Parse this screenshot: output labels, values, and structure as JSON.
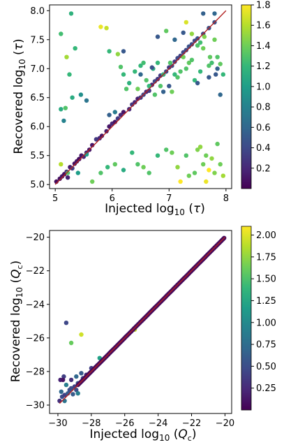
{
  "chart_data": [
    {
      "type": "scatter",
      "xlabel": "Injected log₁₀(τ)",
      "ylabel": "Recovered log₁₀(τ)",
      "xlim": [
        4.9,
        8.1
      ],
      "ylim": [
        4.93,
        8.1
      ],
      "xticks": [
        5,
        6,
        7,
        8
      ],
      "xtick_labels": [
        "5",
        "6",
        "7",
        "8"
      ],
      "yticks": [
        5.0,
        5.5,
        6.0,
        6.5,
        7.0,
        7.5,
        8.0
      ],
      "ytick_labels": [
        "5.0",
        "5.5",
        "6.0",
        "6.5",
        "7.0",
        "7.5",
        "8.0"
      ],
      "identity_line": {
        "from": [
          5.0,
          5.0
        ],
        "to": [
          8.0,
          8.0
        ],
        "color": "#b22222"
      },
      "colorbar": {
        "colormap": "viridis",
        "vmin": 0.0,
        "vmax": 1.8,
        "ticks": [
          0.2,
          0.4,
          0.6,
          0.8,
          1.0,
          1.2,
          1.4,
          1.6,
          1.8
        ],
        "tick_labels": [
          "0.2",
          "0.4",
          "0.6",
          "0.8",
          "1.0",
          "1.2",
          "1.4",
          "1.6",
          "1.8"
        ]
      },
      "points": [
        [
          5.02,
          5.05,
          0.05
        ],
        [
          5.08,
          5.1,
          0.08
        ],
        [
          5.12,
          5.14,
          0.1
        ],
        [
          5.16,
          5.18,
          0.06
        ],
        [
          5.2,
          5.22,
          0.2
        ],
        [
          5.22,
          5.12,
          0.15
        ],
        [
          5.26,
          5.3,
          0.12
        ],
        [
          5.3,
          5.28,
          0.3
        ],
        [
          5.34,
          5.36,
          0.08
        ],
        [
          5.38,
          5.4,
          0.1
        ],
        [
          5.42,
          5.44,
          0.05
        ],
        [
          5.46,
          5.5,
          0.1
        ],
        [
          5.5,
          5.48,
          0.2
        ],
        [
          5.55,
          5.55,
          0.15
        ],
        [
          5.6,
          5.6,
          0.1
        ],
        [
          5.65,
          5.68,
          0.12
        ],
        [
          5.72,
          5.78,
          0.3
        ],
        [
          5.78,
          5.8,
          0.2
        ],
        [
          5.82,
          5.84,
          0.1
        ],
        [
          5.9,
          5.92,
          0.15
        ],
        [
          5.95,
          6.0,
          0.1
        ],
        [
          6.0,
          6.05,
          0.2
        ],
        [
          6.05,
          6.08,
          0.1
        ],
        [
          6.1,
          6.14,
          0.3
        ],
        [
          6.15,
          6.2,
          0.2
        ],
        [
          6.2,
          6.25,
          0.1
        ],
        [
          6.3,
          6.3,
          0.2
        ],
        [
          6.35,
          6.38,
          0.3
        ],
        [
          6.4,
          6.42,
          0.2
        ],
        [
          6.45,
          6.48,
          0.15
        ],
        [
          6.5,
          6.5,
          0.3
        ],
        [
          6.55,
          6.55,
          0.4
        ],
        [
          6.6,
          6.6,
          0.2
        ],
        [
          6.65,
          6.62,
          0.3
        ],
        [
          6.7,
          6.72,
          0.2
        ],
        [
          6.75,
          6.78,
          0.4
        ],
        [
          6.8,
          6.82,
          0.3
        ],
        [
          6.85,
          6.88,
          0.3
        ],
        [
          6.9,
          6.9,
          0.35
        ],
        [
          6.95,
          6.95,
          0.4
        ],
        [
          7.0,
          7.02,
          0.3
        ],
        [
          7.05,
          7.05,
          0.4
        ],
        [
          7.1,
          7.12,
          0.3
        ],
        [
          7.15,
          7.18,
          0.4
        ],
        [
          7.2,
          7.22,
          0.35
        ],
        [
          7.25,
          7.28,
          0.4
        ],
        [
          7.3,
          7.32,
          0.4
        ],
        [
          7.35,
          7.38,
          0.45
        ],
        [
          7.4,
          7.42,
          0.4
        ],
        [
          7.45,
          7.48,
          0.4
        ],
        [
          7.5,
          7.52,
          0.45
        ],
        [
          7.6,
          7.6,
          0.4
        ],
        [
          7.7,
          7.7,
          0.45
        ],
        [
          7.8,
          7.8,
          0.45
        ],
        [
          5.28,
          7.95,
          1.15
        ],
        [
          5.1,
          7.6,
          1.25
        ],
        [
          5.2,
          7.2,
          1.55
        ],
        [
          5.25,
          6.9,
          1.2
        ],
        [
          5.3,
          6.5,
          1.1
        ],
        [
          5.35,
          7.35,
          1.2
        ],
        [
          5.1,
          6.3,
          1.1
        ],
        [
          5.18,
          6.32,
          1.3
        ],
        [
          5.8,
          7.72,
          1.75
        ],
        [
          5.9,
          7.7,
          1.65
        ],
        [
          5.95,
          7.3,
          1.2
        ],
        [
          6.1,
          7.25,
          1.5
        ],
        [
          6.15,
          7.03,
          1.3
        ],
        [
          6.2,
          6.9,
          1.2
        ],
        [
          6.25,
          6.65,
          1.3
        ],
        [
          6.3,
          6.75,
          1.15
        ],
        [
          6.4,
          6.95,
          1.2
        ],
        [
          6.45,
          6.65,
          1.4
        ],
        [
          6.5,
          7.05,
          1.2
        ],
        [
          6.55,
          7.1,
          1.25
        ],
        [
          6.6,
          6.8,
          1.3
        ],
        [
          6.65,
          6.7,
          1.2
        ],
        [
          6.72,
          7.0,
          1.1
        ],
        [
          6.75,
          6.55,
          1.3
        ],
        [
          6.8,
          7.1,
          1.2
        ],
        [
          6.85,
          6.7,
          1.3
        ],
        [
          6.9,
          6.9,
          1.2
        ],
        [
          6.95,
          7.65,
          1.35
        ],
        [
          7.02,
          7.1,
          1.3
        ],
        [
          7.1,
          6.9,
          1.2
        ],
        [
          7.2,
          6.95,
          1.3
        ],
        [
          7.25,
          7.2,
          1.4
        ],
        [
          7.3,
          7.0,
          1.3
        ],
        [
          7.35,
          7.1,
          1.35
        ],
        [
          7.4,
          7.15,
          1.3
        ],
        [
          7.45,
          6.8,
          1.2
        ],
        [
          7.5,
          7.4,
          1.3
        ],
        [
          7.55,
          7.45,
          1.25
        ],
        [
          7.6,
          7.35,
          1.4
        ],
        [
          7.7,
          7.05,
          1.3
        ],
        [
          7.72,
          7.2,
          1.35
        ],
        [
          7.75,
          7.1,
          1.25
        ],
        [
          7.8,
          7.5,
          1.4
        ],
        [
          7.85,
          7.2,
          1.3
        ],
        [
          7.9,
          7.08,
          1.35
        ],
        [
          7.95,
          6.9,
          1.2
        ],
        [
          7.55,
          6.95,
          1.2
        ],
        [
          7.62,
          7.55,
          1.45
        ],
        [
          7.4,
          7.6,
          1.5
        ],
        [
          7.3,
          7.8,
          1.7
        ],
        [
          7.15,
          6.85,
          1.3
        ],
        [
          7.05,
          6.6,
          1.4
        ],
        [
          5.95,
          6.2,
          0.55
        ],
        [
          6.2,
          7.3,
          0.5
        ],
        [
          6.5,
          6.9,
          0.6
        ],
        [
          6.7,
          7.02,
          0.45
        ],
        [
          6.8,
          7.55,
          0.5
        ],
        [
          6.9,
          6.6,
          0.55
        ],
        [
          7.0,
          6.7,
          0.5
        ],
        [
          7.1,
          7.5,
          0.6
        ],
        [
          7.25,
          7.62,
          0.5
        ],
        [
          7.6,
          7.95,
          0.55
        ],
        [
          7.8,
          7.95,
          0.6
        ],
        [
          7.9,
          6.55,
          0.6
        ],
        [
          7.82,
          6.9,
          0.5
        ],
        [
          7.7,
          6.85,
          0.5
        ],
        [
          7.5,
          6.75,
          0.5
        ],
        [
          7.85,
          7.0,
          0.55
        ],
        [
          5.15,
          6.1,
          0.8
        ],
        [
          5.45,
          6.55,
          0.9
        ],
        [
          5.55,
          6.45,
          0.7
        ],
        [
          6.05,
          6.25,
          0.75
        ],
        [
          5.1,
          5.35,
          1.6
        ],
        [
          5.22,
          5.2,
          1.3
        ],
        [
          5.4,
          5.2,
          1.0
        ],
        [
          5.55,
          5.52,
          1.0
        ],
        [
          5.65,
          5.05,
          1.4
        ],
        [
          5.8,
          5.2,
          1.3
        ],
        [
          5.92,
          5.3,
          1.2
        ],
        [
          6.05,
          5.35,
          1.35
        ],
        [
          6.2,
          5.25,
          1.1
        ],
        [
          6.35,
          5.55,
          1.2
        ],
        [
          6.45,
          5.35,
          1.3
        ],
        [
          6.55,
          5.3,
          1.4
        ],
        [
          6.65,
          5.2,
          1.3
        ],
        [
          6.8,
          5.5,
          1.2
        ],
        [
          6.95,
          5.6,
          1.3
        ],
        [
          7.05,
          5.55,
          1.4
        ],
        [
          7.15,
          5.3,
          1.5
        ],
        [
          7.2,
          5.05,
          1.8
        ],
        [
          7.3,
          5.5,
          1.3
        ],
        [
          7.35,
          5.15,
          1.4
        ],
        [
          7.45,
          5.2,
          1.35
        ],
        [
          7.5,
          5.6,
          1.45
        ],
        [
          7.55,
          5.65,
          1.5
        ],
        [
          7.6,
          5.35,
          1.4
        ],
        [
          7.65,
          5.05,
          1.75
        ],
        [
          7.7,
          5.25,
          1.8
        ],
        [
          7.75,
          5.45,
          1.5
        ],
        [
          7.8,
          5.2,
          1.45
        ],
        [
          7.85,
          5.7,
          1.35
        ],
        [
          7.9,
          5.35,
          1.4
        ],
        [
          7.95,
          5.15,
          1.55
        ],
        [
          7.65,
          5.5,
          1.4
        ]
      ]
    },
    {
      "type": "scatter",
      "xlabel": "Injected log₁₀(Qc)",
      "ylabel": "Recovered log₁₀(Qc)",
      "xlim": [
        -30.5,
        -19.6
      ],
      "ylim": [
        -30.5,
        -19.6
      ],
      "xticks": [
        -30,
        -28,
        -26,
        -24,
        -22,
        -20
      ],
      "xtick_labels": [
        "−30",
        "−28",
        "−26",
        "−24",
        "−22",
        "−20"
      ],
      "yticks": [
        -30,
        -28,
        -26,
        -24,
        -22,
        -20
      ],
      "ytick_labels": [
        "−30",
        "−28",
        "−26",
        "−24",
        "−22",
        "−20"
      ],
      "identity_line": {
        "from": [
          -29.9,
          -29.9
        ],
        "to": [
          -20.0,
          -20.0
        ],
        "color": "#b22222"
      },
      "colorbar": {
        "colormap": "viridis",
        "vmin": 0.0,
        "vmax": 2.1,
        "ticks": [
          0.25,
          0.5,
          0.75,
          1.0,
          1.25,
          1.5,
          1.75,
          2.0
        ],
        "tick_labels": [
          "0.25",
          "0.50",
          "0.75",
          "1.00",
          "1.25",
          "1.50",
          "1.75",
          "2.00"
        ]
      },
      "points": [
        [
          -29.9,
          -29.75,
          0.3
        ],
        [
          -29.75,
          -29.5,
          0.5
        ],
        [
          -29.6,
          -29.4,
          0.4
        ],
        [
          -29.4,
          -29.3,
          0.6
        ],
        [
          -29.2,
          -29.0,
          0.5
        ],
        [
          -29.0,
          -28.9,
          0.4
        ],
        [
          -28.8,
          -28.7,
          0.6
        ],
        [
          -28.5,
          -28.4,
          0.5
        ],
        [
          -28.3,
          -28.2,
          0.3
        ],
        [
          -28.0,
          -27.8,
          0.4
        ],
        [
          -29.8,
          -29.2,
          0.7
        ],
        [
          -29.5,
          -28.8,
          0.9
        ],
        [
          -29.6,
          -29.75,
          0.8
        ],
        [
          -29.3,
          -29.1,
          0.5
        ],
        [
          -29.1,
          -29.35,
          0.6
        ],
        [
          -28.9,
          -29.1,
          0.5
        ],
        [
          -29.2,
          -28.5,
          0.3
        ],
        [
          -29.85,
          -28.5,
          0.2
        ],
        [
          -29.65,
          -28.3,
          0.4
        ],
        [
          -28.6,
          -28.1,
          0.6
        ],
        [
          -28.9,
          -28.3,
          0.7
        ],
        [
          -29.5,
          -25.1,
          0.45
        ],
        [
          -29.2,
          -26.3,
          1.6
        ],
        [
          -28.6,
          -25.8,
          1.95
        ],
        [
          -27.5,
          -27.2,
          1.2
        ],
        [
          -29.7,
          -28.5,
          0.1
        ],
        [
          -25.4,
          -25.5,
          1.9
        ],
        [
          -28.8,
          -29.3,
          0.9
        ]
      ],
      "dense_line": {
        "x_from": -28.8,
        "x_to": -20.05,
        "count": 140,
        "value": 0.05
      }
    }
  ]
}
